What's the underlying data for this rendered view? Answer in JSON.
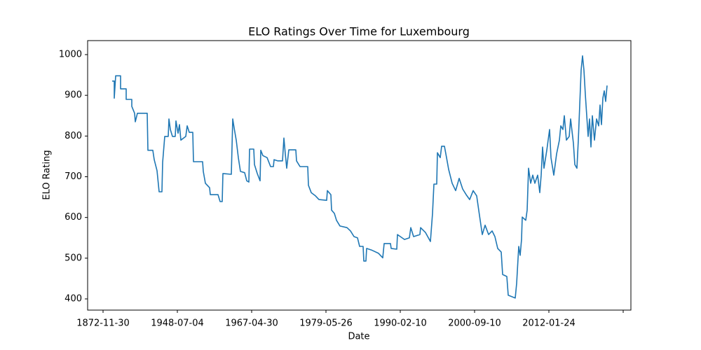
{
  "chart_data": {
    "type": "line",
    "title": "ELO Ratings Over Time for Luxembourg",
    "x_label": "Date",
    "y_label": "ELO Rating",
    "xlim": [
      -35,
      740
    ],
    "ylim": [
      372.5,
      1034.4
    ],
    "xticks": [
      {
        "value": -13,
        "label": "1872-11-30"
      },
      {
        "value": 93,
        "label": "1948-07-04"
      },
      {
        "value": 199,
        "label": "1967-04-30"
      },
      {
        "value": 305,
        "label": "1979-05-26"
      },
      {
        "value": 411,
        "label": "1990-02-10"
      },
      {
        "value": 517,
        "label": "2000-09-10"
      },
      {
        "value": 623,
        "label": "2012-01-24"
      },
      {
        "value": 729,
        "label": null
      }
    ],
    "yticks": [
      400,
      500,
      600,
      700,
      800,
      900,
      1000
    ],
    "series": [
      {
        "name": "Luxembourg",
        "color": "#1f77b4",
        "x": [
          0,
          3,
          3,
          5,
          12,
          12,
          20,
          20,
          28,
          28,
          32,
          33,
          36,
          50,
          51,
          58,
          60,
          64,
          67,
          71,
          72,
          75,
          80,
          81,
          83,
          86,
          90,
          91,
          94,
          96,
          98,
          105,
          107,
          110,
          115,
          116,
          129,
          130,
          133,
          139,
          140,
          151,
          154,
          157,
          158,
          170,
          172,
          174,
          177,
          180,
          183,
          189,
          192,
          195,
          196,
          202,
          203,
          207,
          211,
          212,
          215,
          221,
          226,
          230,
          231,
          236,
          243,
          245,
          247,
          249,
          252,
          262,
          263,
          268,
          279,
          280,
          284,
          290,
          295,
          306,
          307,
          312,
          313,
          317,
          320,
          325,
          335,
          340,
          345,
          350,
          353,
          358,
          359,
          362,
          363,
          370,
          380,
          386,
          388,
          397,
          398,
          406,
          407,
          417,
          424,
          426,
          430,
          439,
          440,
          447,
          454,
          457,
          459,
          463,
          464,
          468,
          470,
          474,
          477,
          480,
          485,
          490,
          495,
          500,
          505,
          510,
          515,
          520,
          524,
          528,
          532,
          537,
          542,
          546,
          550,
          555,
          557,
          563,
          565,
          575,
          577,
          580,
          582,
          584,
          585,
          590,
          592,
          594,
          597,
          600,
          603,
          607,
          610,
          612,
          614,
          616,
          620,
          624,
          626,
          630,
          634,
          638,
          640,
          643,
          645,
          648,
          652,
          654,
          658,
          660,
          663,
          665,
          667,
          669,
          671,
          673,
          675,
          677,
          679,
          681,
          683,
          685,
          688,
          691,
          694,
          696,
          698,
          700,
          702,
          704,
          706
        ],
        "values": [
          935,
          935,
          893,
          948,
          948,
          916,
          916,
          890,
          890,
          873,
          856,
          835,
          856,
          856,
          765,
          765,
          742,
          715,
          663,
          663,
          735,
          799,
          799,
          842,
          816,
          799,
          799,
          837,
          807,
          828,
          790,
          799,
          825,
          809,
          809,
          737,
          737,
          713,
          684,
          673,
          656,
          656,
          639,
          639,
          708,
          706,
          842,
          820,
          790,
          747,
          713,
          710,
          690,
          687,
          768,
          768,
          730,
          708,
          690,
          765,
          752,
          747,
          725,
          725,
          742,
          739,
          739,
          795,
          756,
          721,
          766,
          766,
          739,
          725,
          725,
          679,
          661,
          653,
          644,
          642,
          666,
          656,
          618,
          610,
          593,
          579,
          575,
          567,
          553,
          550,
          529,
          529,
          493,
          493,
          524,
          520,
          512,
          501,
          536,
          536,
          524,
          522,
          558,
          546,
          550,
          575,
          553,
          558,
          575,
          563,
          541,
          610,
          682,
          682,
          759,
          747,
          775,
          775,
          747,
          718,
          684,
          666,
          696,
          670,
          656,
          644,
          666,
          653,
          605,
          558,
          581,
          558,
          567,
          553,
          524,
          515,
          460,
          455,
          409,
          402,
          438,
          529,
          507,
          546,
          601,
          593,
          618,
          721,
          684,
          704,
          684,
          704,
          661,
          704,
          773,
          721,
          765,
          816,
          747,
          704,
          756,
          790,
          825,
          816,
          850,
          790,
          799,
          842,
          782,
          730,
          721,
          790,
          876,
          962,
          997,
          962,
          902,
          850,
          799,
          842,
          773,
          850,
          790,
          842,
          825,
          876,
          828,
          893,
          911,
          885,
          924
        ]
      }
    ]
  }
}
